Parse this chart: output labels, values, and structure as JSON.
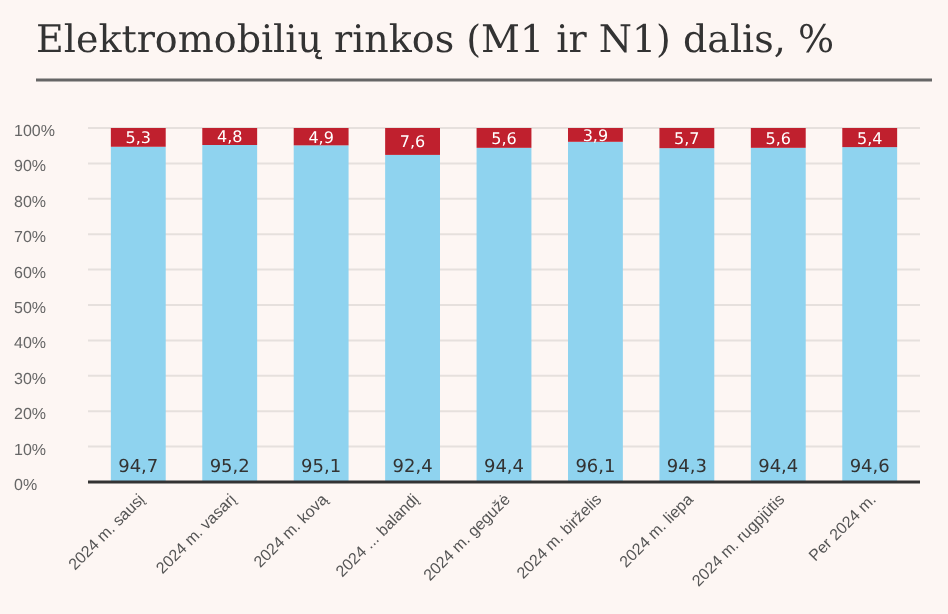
{
  "chart_data": {
    "type": "bar",
    "title": "Elektromobilių rinkos (M1 ir N1) dalis, %",
    "stacked": true,
    "categories": [
      "2024 m. sausį",
      "2024 m. vasarį",
      "2024 m. kovą",
      "2024 ... balandį",
      "2024 m. gegužė",
      "2024 m. birželis",
      "2024 m. liepa",
      "2024 m. rugpjūtis",
      "Per 2024 m."
    ],
    "series": [
      {
        "color": "#8fd3ef",
        "values": [
          94.7,
          95.2,
          95.1,
          92.4,
          94.4,
          96.1,
          94.3,
          94.4,
          94.6
        ],
        "value_labels": [
          "94,7",
          "95,2",
          "95,1",
          "92,4",
          "94,4",
          "96,1",
          "94,3",
          "94,4",
          "94,6"
        ]
      },
      {
        "color": "#c0202e",
        "values": [
          5.3,
          4.8,
          4.9,
          7.6,
          5.6,
          3.9,
          5.7,
          5.6,
          5.4
        ],
        "value_labels": [
          "5,3",
          "4,8",
          "4,9",
          "7,6",
          "5,6",
          "3,9",
          "5,7",
          "5,6",
          "5,4"
        ]
      }
    ],
    "ylim": [
      0,
      100
    ],
    "yticks": [
      {
        "value": 0,
        "label": "0%"
      },
      {
        "value": 10,
        "label": "10%"
      },
      {
        "value": 20,
        "label": "20%"
      },
      {
        "value": 30,
        "label": "30%"
      },
      {
        "value": 40,
        "label": "40%"
      },
      {
        "value": 50,
        "label": "50%"
      },
      {
        "value": 60,
        "label": "60%"
      },
      {
        "value": 70,
        "label": "70%"
      },
      {
        "value": 80,
        "label": "80%"
      },
      {
        "value": 90,
        "label": "90%"
      },
      {
        "value": 100,
        "label": "100%"
      }
    ],
    "grid": "y"
  }
}
